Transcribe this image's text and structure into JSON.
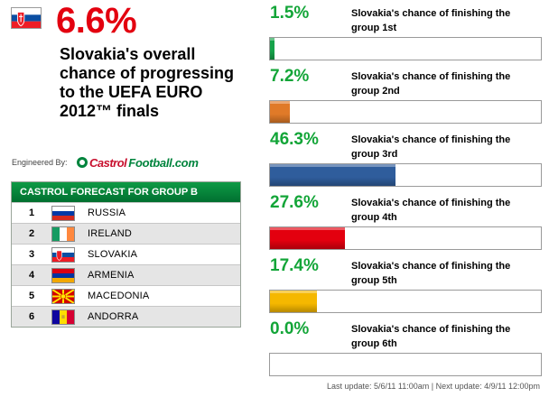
{
  "summary": {
    "flag_icon": "slovakia-flag-icon",
    "headline": "6.6%",
    "subline": "Slovakia's overall chance of progressing to the UEFA EURO 2012™ finals"
  },
  "branding": {
    "engineered_by": "Engineered By:",
    "logo_primary": "Castrol",
    "logo_secondary": "Football.com",
    "logo_icon": "castrol-logo-icon"
  },
  "group_table": {
    "title": "CASTROL FORECAST FOR GROUP B",
    "rows": [
      {
        "position": "1",
        "team": "RUSSIA",
        "flag_icon": "russia-flag-icon"
      },
      {
        "position": "2",
        "team": "IRELAND",
        "flag_icon": "ireland-flag-icon"
      },
      {
        "position": "3",
        "team": "SLOVAKIA",
        "flag_icon": "slovakia-flag-icon"
      },
      {
        "position": "4",
        "team": "ARMENIA",
        "flag_icon": "armenia-flag-icon"
      },
      {
        "position": "5",
        "team": "MACEDONIA",
        "flag_icon": "macedonia-flag-icon"
      },
      {
        "position": "6",
        "team": "ANDORRA",
        "flag_icon": "andorra-flag-icon"
      }
    ]
  },
  "chances": [
    {
      "percent": "1.5%",
      "value": 1.5,
      "label": "Slovakia's chance of finishing the group 1st",
      "color": "#16a34a"
    },
    {
      "percent": "7.2%",
      "value": 7.2,
      "label": "Slovakia's chance of finishing the group 2nd",
      "color": "#e07a28"
    },
    {
      "percent": "46.3%",
      "value": 46.3,
      "label": "Slovakia's chance of finishing the group 3rd",
      "color": "#2f5d9c"
    },
    {
      "percent": "27.6%",
      "value": 27.6,
      "label": "Slovakia's chance of finishing the group 4th",
      "color": "#e3000f"
    },
    {
      "percent": "17.4%",
      "value": 17.4,
      "label": "Slovakia's chance of finishing the group 5th",
      "color": "#f5b800"
    },
    {
      "percent": "0.0%",
      "value": 0.0,
      "label": "Slovakia's chance of finishing the group 6th",
      "color": "#cccccc"
    }
  ],
  "footer": {
    "text": "Last update: 5/6/11 11:00am | Next update: 4/9/11 12:00pm"
  }
}
